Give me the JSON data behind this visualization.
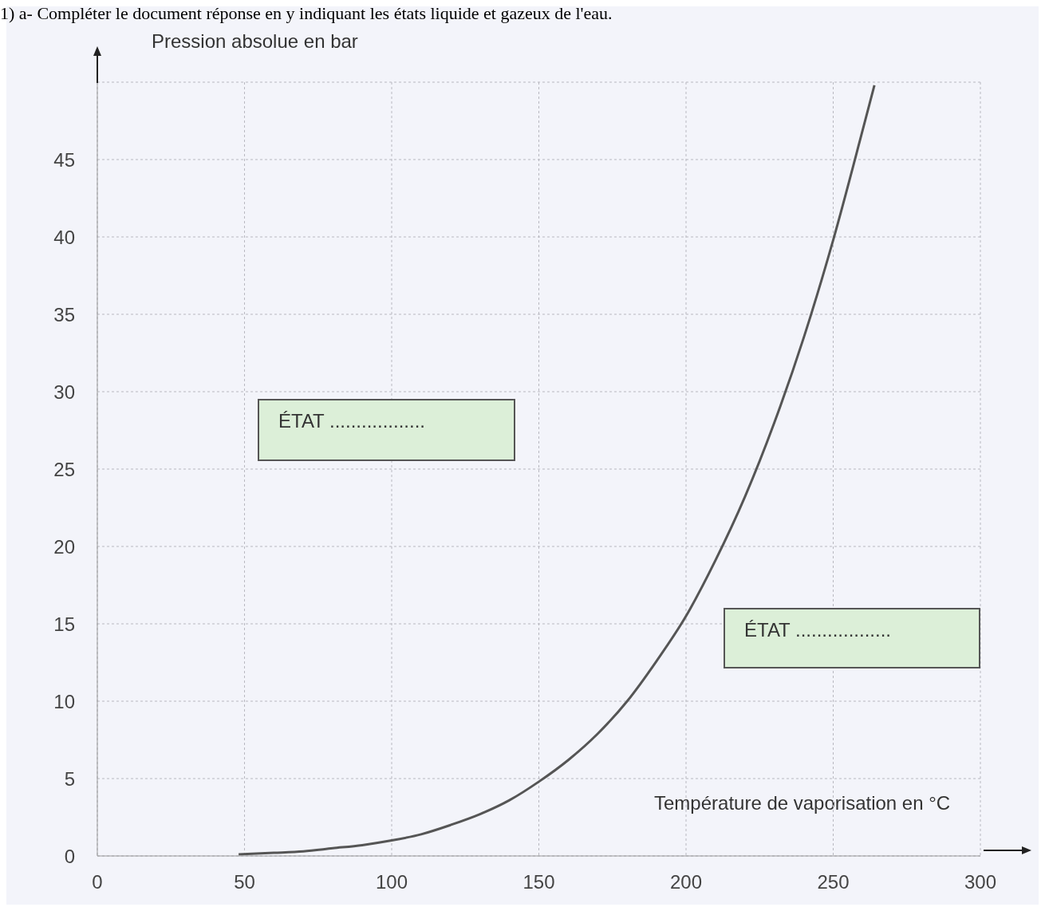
{
  "chart_data": {
    "type": "line",
    "title": "1) a- Compléter le document réponse en y indiquant les états liquide et gazeux de l'eau.",
    "xlabel": "Température de vaporisation en °C",
    "ylabel": "Pression absolue en bar",
    "x": [
      48,
      60,
      70,
      80,
      90,
      100,
      110,
      120,
      130,
      140,
      150,
      160,
      170,
      180,
      190,
      200,
      210,
      220,
      230,
      240,
      250,
      260,
      264
    ],
    "series": [
      {
        "color": "#555555",
        "values": [
          0.1,
          0.2,
          0.3,
          0.5,
          0.7,
          1.0,
          1.4,
          2.0,
          2.7,
          3.6,
          4.8,
          6.2,
          7.9,
          10.0,
          12.6,
          15.5,
          19.1,
          23.2,
          28.0,
          33.5,
          39.8,
          46.9,
          49.8
        ]
      }
    ],
    "xlim": [
      0,
      300
    ],
    "xticks": [
      0,
      50,
      100,
      150,
      200,
      250,
      300
    ],
    "ylim": [
      0,
      50
    ],
    "yticks": [
      0,
      5,
      10,
      15,
      20,
      25,
      30,
      35,
      40,
      45,
      {
        "value": 50,
        "label": null
      }
    ],
    "grid": true,
    "marker": "none",
    "line_style": "solid",
    "annotations": [
      "ÉTAT ..................",
      "ÉTAT .................."
    ]
  }
}
